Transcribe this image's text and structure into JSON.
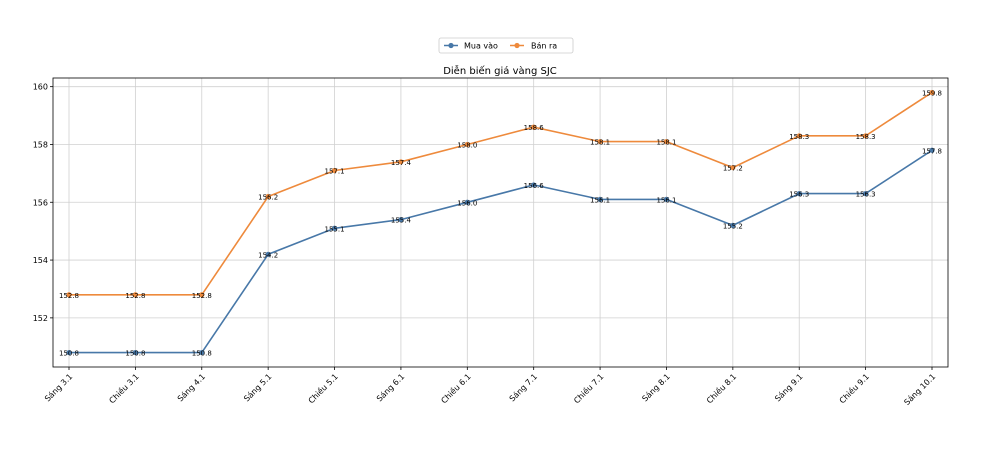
{
  "chart_data": {
    "type": "line",
    "title": "Diễn biến giá vàng SJC",
    "xlabel": "",
    "ylabel": "",
    "categories": [
      "Sáng 3.1",
      "Chiều 3.1",
      "Sáng 4.1",
      "Sáng 5.1",
      "Chiều 5.1",
      "Sáng 6.1",
      "Chiều 6.1",
      "Sáng 7.1",
      "Chiều 7.1",
      "Sáng 8.1",
      "Chiều 8.1",
      "Sáng 9.1",
      "Chiều 9.1",
      "Sáng 10.1"
    ],
    "series": [
      {
        "name": "Mua vào",
        "color": "#4878a8",
        "values": [
          150.8,
          150.8,
          150.8,
          154.2,
          155.1,
          155.4,
          156.0,
          156.6,
          156.1,
          156.1,
          155.2,
          156.3,
          156.3,
          157.8
        ],
        "labels": [
          "150.8",
          "150.8",
          "150.8",
          "154.2",
          "155.1",
          "155.4",
          "156.0",
          "156.6",
          "156.1",
          "156.1",
          "155.2",
          "156.3",
          "156.3",
          "157.8"
        ]
      },
      {
        "name": "Bán ra",
        "color": "#ee8a3c",
        "values": [
          152.8,
          152.8,
          152.8,
          156.2,
          157.1,
          157.4,
          158.0,
          158.6,
          158.1,
          158.1,
          157.2,
          158.3,
          158.3,
          159.8
        ],
        "labels": [
          "152.8",
          "152.8",
          "152.8",
          "156.2",
          "157.1",
          "157.4",
          "158.0",
          "158.6",
          "158.1",
          "158.1",
          "157.2",
          "158.3",
          "158.3",
          "159.8"
        ]
      }
    ],
    "ylim": [
      150.3,
      160.3
    ],
    "yticks": [
      "152",
      "154",
      "156",
      "158",
      "160"
    ],
    "grid": true,
    "legend": "top-center"
  }
}
